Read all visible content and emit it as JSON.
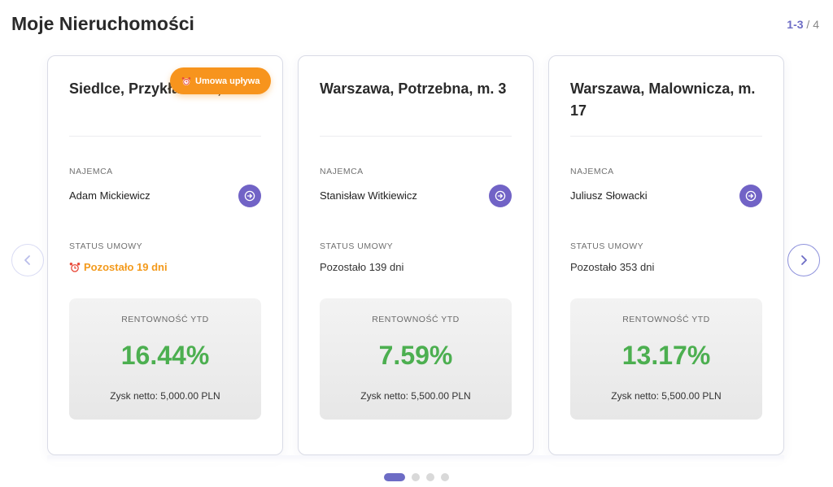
{
  "header": {
    "title": "Moje Nieruchomości",
    "page_current": "1-3",
    "page_separator": " / ",
    "page_total": "4"
  },
  "navigation": {
    "prev_icon": "chevron-left-icon",
    "next_icon": "chevron-right-icon"
  },
  "labels": {
    "tenant": "NAJEMCA",
    "contract_status": "STATUS UMOWY",
    "yield": "RENTOWNOŚĆ YTD"
  },
  "cards": [
    {
      "title": "Siedlce, Przykładowa, m. 1",
      "badge": "Umowa upływa",
      "tenant": "Adam Mickiewicz",
      "status": "Pozostało 19 dni",
      "status_warning": true,
      "yield": "16.44%",
      "net_profit": "Zysk netto: 5,000.00 PLN"
    },
    {
      "title": "Warszawa, Potrzebna, m. 3",
      "tenant": "Stanisław Witkiewicz",
      "status": "Pozostało 139 dni",
      "status_warning": false,
      "yield": "7.59%",
      "net_profit": "Zysk netto: 5,500.00 PLN"
    },
    {
      "title": "Warszawa, Malownicza, m. 17",
      "tenant": "Juliusz Słowacki",
      "status": "Pozostało 353 dni",
      "status_warning": false,
      "yield": "13.17%",
      "net_profit": "Zysk netto: 5,500.00 PLN"
    }
  ],
  "pagination_dots": {
    "count": 4,
    "active": 0
  },
  "colors": {
    "accent": "#6d6cc5",
    "tenant_button": "#7163c6",
    "warning": "#f7941d",
    "yield_green": "#4caf50"
  }
}
